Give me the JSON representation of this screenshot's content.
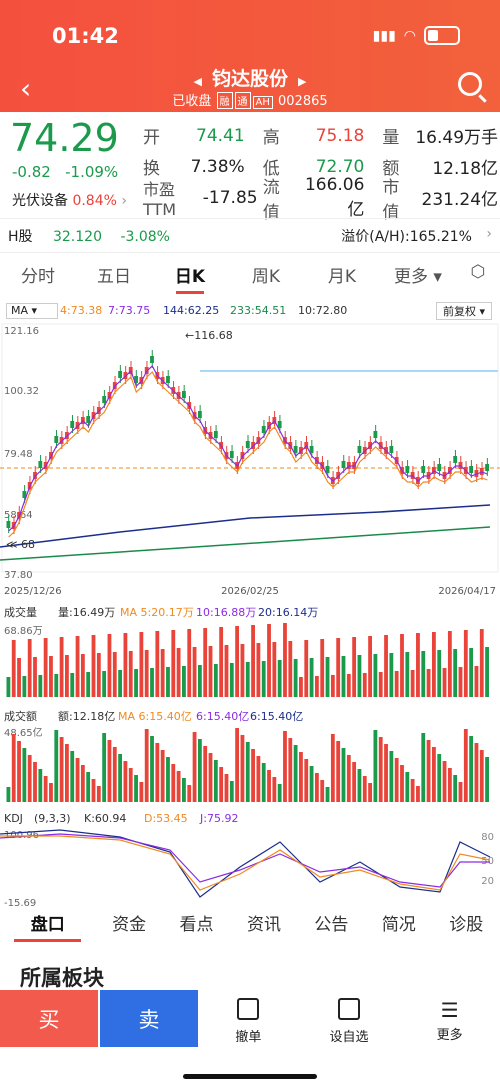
{
  "status": {
    "time": "01:42"
  },
  "header": {
    "stock_name": "钧达股份",
    "status_text": "已收盘",
    "tag1": "融",
    "tag2": "通",
    "tag3": "AH",
    "code": "002865"
  },
  "quote": {
    "price": "74.29",
    "change": "-0.82",
    "change_pct": "-1.09%",
    "sector": "光伏设备",
    "sector_pct": "0.84%",
    "rows": [
      [
        {
          "l": "开",
          "v": "74.41",
          "c": "#1a9a4a"
        },
        {
          "l": "高",
          "v": "75.18",
          "c": "#e8443a"
        },
        {
          "l": "量",
          "v": "16.49万手",
          "c": "#222"
        }
      ],
      [
        {
          "l": "换",
          "v": "7.38%",
          "c": "#222"
        },
        {
          "l": "低",
          "v": "72.70",
          "c": "#1a9a4a"
        },
        {
          "l": "额",
          "v": "12.18亿",
          "c": "#222"
        }
      ],
      [
        {
          "l": "市盈TTM",
          "v": "-17.85",
          "c": "#222"
        },
        {
          "l": "流值",
          "v": "166.06亿",
          "c": "#222"
        },
        {
          "l": "市值",
          "v": "231.24亿",
          "c": "#222"
        }
      ]
    ]
  },
  "hshare": {
    "label": "H股",
    "price": "32.120",
    "pct": "-3.08%",
    "premium": "溢价(A/H):165.21%"
  },
  "tabs": [
    "分时",
    "五日",
    "日K",
    "周K",
    "月K",
    "更多"
  ],
  "ma": {
    "label": "MA",
    "ma4": "4:73.38",
    "ma7": "7:73.75",
    "ma144": "144:62.25",
    "ma233": "233:54.51",
    "ma10": "10:72.80",
    "fq": "前复权"
  },
  "kline": {
    "y_top": "121.16",
    "y_mid1": "100.32",
    "y_mid2": "79.48",
    "y_mid3": "58.64",
    "y_bot": "37.80",
    "high_label": "116.68",
    "low_label": "68",
    "date_start": "2025/12/26",
    "date_mid": "2026/02/25",
    "date_end": "2026/04/17"
  },
  "volume": {
    "title": "成交量",
    "amt": "量:16.49万",
    "ma5": "MA 5:20.17万",
    "ma10": "10:16.88万",
    "ma20": "20:16.14万",
    "ymax": "68.86万"
  },
  "turnover": {
    "title": "成交额",
    "amt": "额:12.18亿",
    "ma6": "MA 6:15.40亿",
    "ma6b": "6:15.40亿",
    "ma6c": "6:15.40亿",
    "ymax": "48.65亿"
  },
  "kdj": {
    "title": "KDJ",
    "params": "(9,3,3)",
    "k": "K:60.94",
    "d": "D:53.45",
    "j": "J:75.92",
    "ymax": "100.96",
    "ymin": "-15.69",
    "r80": "80",
    "r50": "50",
    "r20": "20"
  },
  "bottom_tabs": [
    "盘口",
    "资金",
    "看点",
    "资讯",
    "公告",
    "简况",
    "诊股"
  ],
  "section": "所属板块",
  "actions": {
    "buy": "买",
    "sell": "卖",
    "cancel": "撤单",
    "watch": "设自选",
    "more": "更多"
  }
}
